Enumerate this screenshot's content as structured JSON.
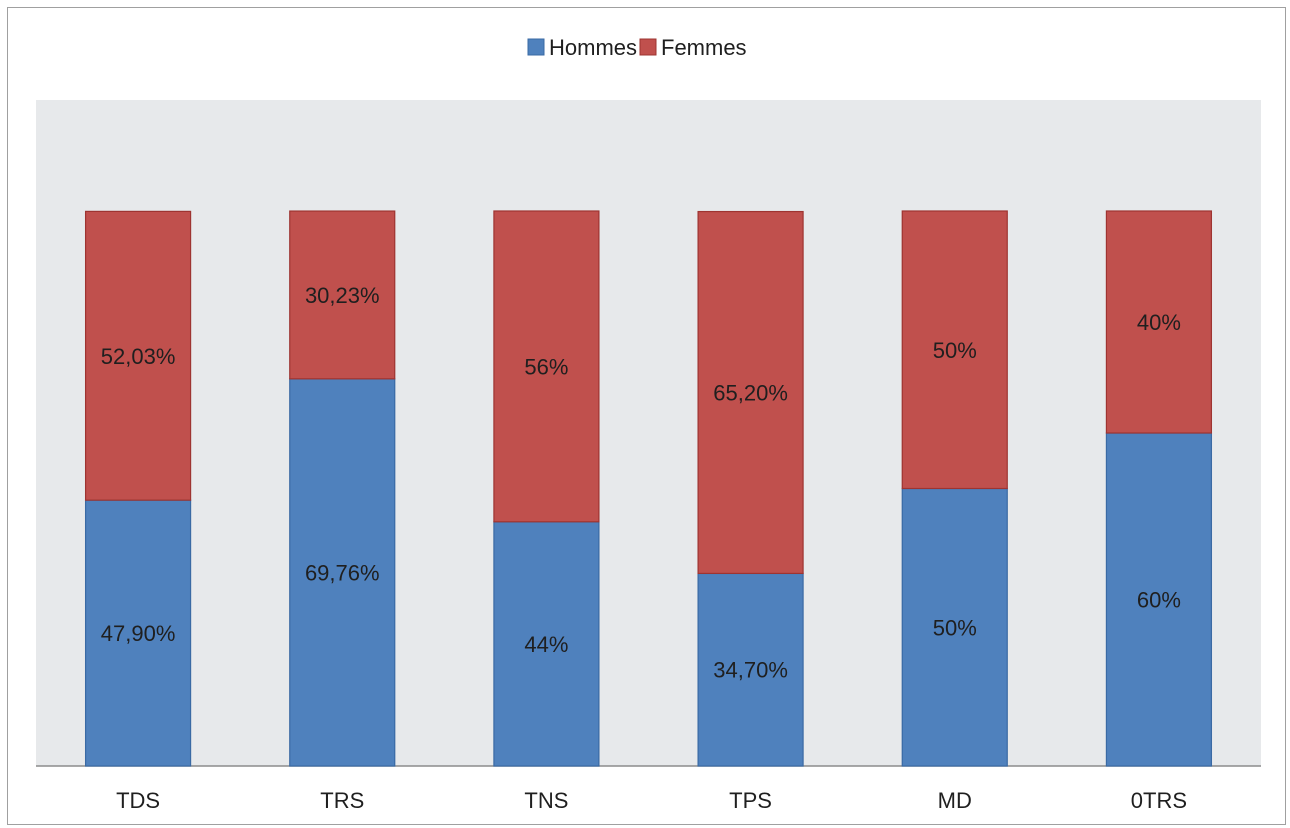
{
  "chart_data": {
    "type": "bar",
    "stacked": true,
    "categories": [
      "TDS",
      "TRS",
      "TNS",
      "TPS",
      "MD",
      "0TRS"
    ],
    "series": [
      {
        "name": "Hommes",
        "color": "#4f81bd",
        "values": [
          47.9,
          69.76,
          44,
          34.7,
          50,
          60
        ],
        "labels": [
          "47,90%",
          "69,76%",
          "44%",
          "34,70%",
          "50%",
          "60%"
        ]
      },
      {
        "name": "Femmes",
        "color": "#c0504d",
        "values": [
          52.03,
          30.23,
          56,
          65.2,
          50,
          40
        ],
        "labels": [
          "52,03%",
          "30,23%",
          "56%",
          "65,20%",
          "50%",
          "40%"
        ]
      }
    ],
    "ylim": [
      0,
      100
    ],
    "legend_position": "top-center",
    "plot_background": "#e7e9eb",
    "grid": false
  }
}
